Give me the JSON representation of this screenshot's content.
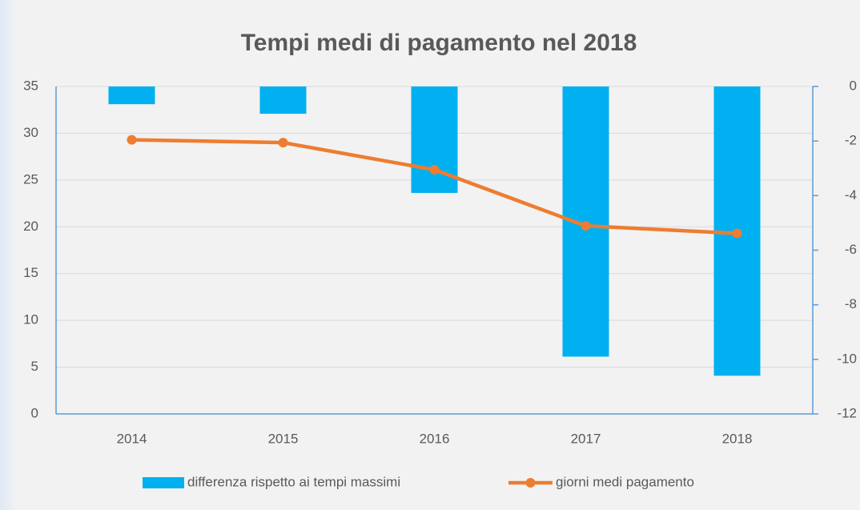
{
  "chart_data": {
    "type": "bar_line",
    "title": "Tempi medi di pagamento nel 2018",
    "categories": [
      "2014",
      "2015",
      "2016",
      "2017",
      "2018"
    ],
    "series": [
      {
        "name": "differenza rispetto ai tempi massimi",
        "type": "bar",
        "axis": "y2",
        "color": "#00b0f0",
        "values": [
          -0.65,
          -1.0,
          -3.9,
          -9.9,
          -10.6
        ]
      },
      {
        "name": "giorni medi pagamento",
        "type": "line",
        "axis": "y",
        "color": "#ed7d31",
        "values": [
          29.3,
          29.0,
          26.1,
          20.1,
          19.3
        ]
      }
    ],
    "ylim": [
      0,
      35
    ],
    "yticks": [
      0,
      5,
      10,
      15,
      20,
      25,
      30,
      35
    ],
    "y2lim": [
      -12,
      0
    ],
    "y2ticks": [
      0,
      -2,
      -4,
      -6,
      -8,
      -10,
      -12
    ],
    "grid": true,
    "legend": "bottom"
  }
}
